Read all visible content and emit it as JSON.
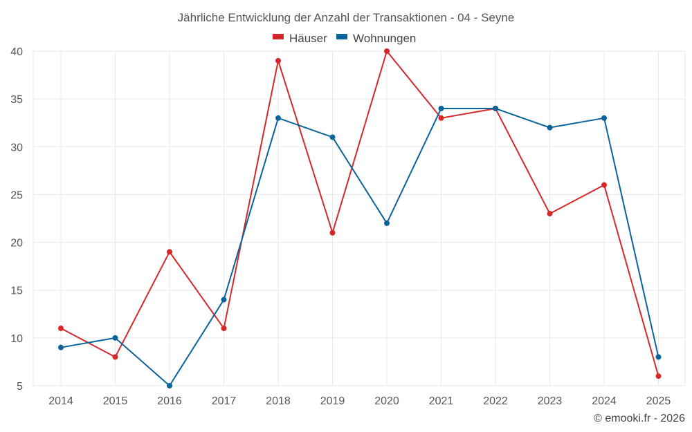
{
  "chart_data": {
    "type": "line",
    "title": "Jährliche Entwicklung der Anzahl der Transaktionen - 04 - Seyne",
    "categories": [
      "2014",
      "2015",
      "2016",
      "2017",
      "2018",
      "2019",
      "2020",
      "2021",
      "2022",
      "2023",
      "2024",
      "2025"
    ],
    "series": [
      {
        "name": "Häuser",
        "color": "#d62728",
        "values": [
          11,
          8,
          19,
          11,
          39,
          21,
          40,
          33,
          34,
          23,
          26,
          6
        ]
      },
      {
        "name": "Wohnungen",
        "color": "#0a6399",
        "values": [
          9,
          10,
          5,
          14,
          33,
          31,
          22,
          34,
          34,
          32,
          33,
          8
        ]
      }
    ],
    "ylim": [
      5,
      40
    ],
    "yticks": [
      "5",
      "10",
      "15",
      "20",
      "25",
      "30",
      "35",
      "40"
    ],
    "grid": true,
    "legend": "top-center"
  },
  "credit": "© emooki.fr - 2026"
}
